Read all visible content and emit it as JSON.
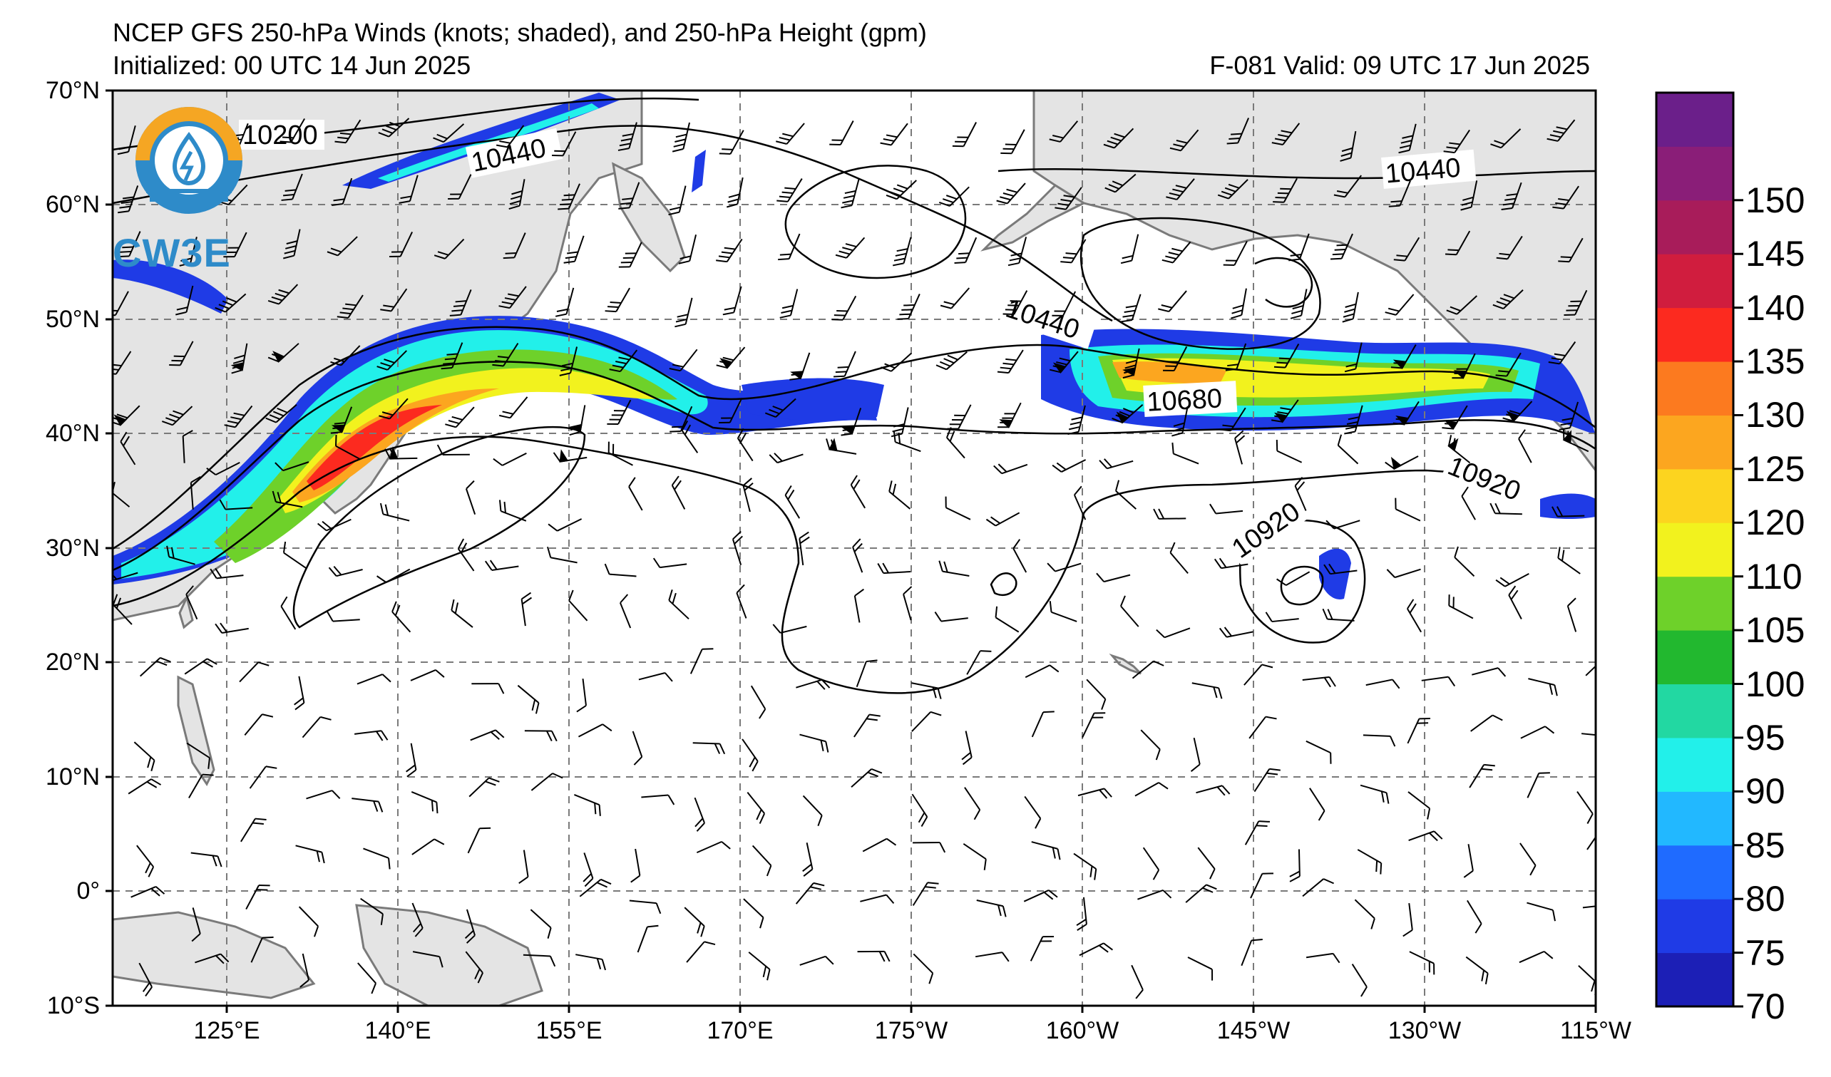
{
  "title": {
    "line1": "NCEP GFS 250-hPa Winds (knots; shaded), and 250-hPa Height (gpm)",
    "line2": "Initialized: 00 UTC 14 Jun 2025",
    "right": "F-081  Valid: 09 UTC 17 Jun 2025"
  },
  "logo": {
    "text": "CW3E",
    "icon": "cw3e-logo-icon"
  },
  "axes": {
    "lat_labels": [
      "70°N",
      "60°N",
      "50°N",
      "40°N",
      "30°N",
      "20°N",
      "10°N",
      "0°",
      "10°S"
    ],
    "lon_labels": [
      "125°E",
      "140°E",
      "155°E",
      "170°E",
      "175°W",
      "160°W",
      "145°W",
      "130°W",
      "115°W"
    ],
    "lat_range": [
      -10,
      70
    ],
    "lon_range_east": [
      115,
      245
    ]
  },
  "colorbar": {
    "labels": [
      "70",
      "75",
      "80",
      "85",
      "90",
      "95",
      "100",
      "105",
      "110",
      "120",
      "125",
      "130",
      "135",
      "140",
      "145",
      "150"
    ],
    "colors": [
      "#1c1fb6",
      "#1f3be6",
      "#1f6bff",
      "#22b8ff",
      "#22f0ea",
      "#22d8a2",
      "#22b82f",
      "#6ed12a",
      "#f2f21e",
      "#fcd41f",
      "#fca61f",
      "#fc7a1f",
      "#fc2a1f",
      "#d01d3e",
      "#a81c5a",
      "#8a1e78",
      "#6b1f8a"
    ]
  },
  "contour_labels": [
    "10200",
    "10440",
    "10440",
    "10440",
    "10680",
    "10920",
    "10920"
  ],
  "colors": {
    "land": "#e4e4e4",
    "coast": "#7a7a7a",
    "grid": "#7a7a7a"
  }
}
